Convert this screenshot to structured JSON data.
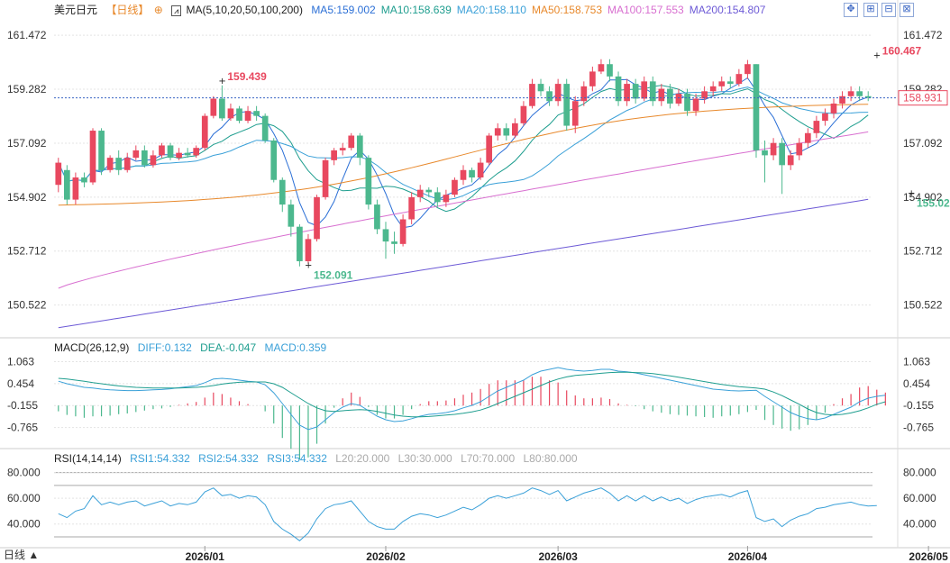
{
  "header": {
    "symbol": "美元日元",
    "period": "【日线】",
    "ma_label": "MA(5,10,20,50,100,200)",
    "ma_values": [
      {
        "label": "MA5:159.002",
        "color": "#2b6fd6"
      },
      {
        "label": "MA10:158.639",
        "color": "#1f9e8f"
      },
      {
        "label": "MA20:158.110",
        "color": "#3aa0d8"
      },
      {
        "label": "MA50:158.753",
        "color": "#e8892c"
      },
      {
        "label": "MA100:157.553",
        "color": "#d86fd0"
      },
      {
        "label": "MA200:154.807",
        "color": "#6d5ad6"
      }
    ]
  },
  "macd_legend": {
    "title": "MACD(26,12,9)",
    "diff": "DIFF:0.132",
    "dea": "DEA:-0.047",
    "macd": "MACD:0.359"
  },
  "rsi_legend": {
    "title": "RSI(14,14,14)",
    "rsi1": "RSI1:54.332",
    "rsi2": "RSI2:54.332",
    "rsi3": "RSI3:54.332",
    "l20": "L20:20.000",
    "l30": "L30:30.000",
    "l70": "L70:70.000",
    "l80": "L80:80.000"
  },
  "footer": {
    "label": "日线 ▲"
  },
  "colors": {
    "up": "#e8485f",
    "down": "#4cb88e",
    "grid": "#e4e4e4",
    "current": "#e8485f"
  },
  "chart_data": [
    {
      "type": "candlestick",
      "y_ticks": [
        "161.472",
        "159.282",
        "157.092",
        "154.902",
        "152.712",
        "150.522"
      ],
      "ylim": [
        149.3,
        162.1
      ],
      "x_ticks": [
        {
          "label": "2026/01",
          "index": 17
        },
        {
          "label": "2026/02",
          "index": 38
        },
        {
          "label": "2026/03",
          "index": 58
        },
        {
          "label": "2026/04",
          "index": 80
        },
        {
          "label": "2026/05",
          "index": 101
        }
      ],
      "current_price": "158.931",
      "annotations": [
        {
          "text": "159.439",
          "index": 19,
          "value": 159.439,
          "pos": "above"
        },
        {
          "text": "152.091",
          "index": 29,
          "value": 152.091,
          "pos": "below"
        },
        {
          "text": "160.467",
          "index": 95,
          "value": 160.467,
          "pos": "above"
        },
        {
          "text": "155.025",
          "index": 99,
          "value": 155.025,
          "pos": "below"
        }
      ],
      "candles": [
        [
          155.4,
          156.3,
          156.5,
          155.1
        ],
        [
          156.0,
          154.8,
          156.2,
          154.6
        ],
        [
          154.8,
          155.7,
          155.9,
          154.6
        ],
        [
          155.7,
          155.5,
          155.9,
          155.3
        ],
        [
          155.5,
          157.6,
          157.7,
          155.4
        ],
        [
          157.6,
          156.0,
          157.7,
          155.8
        ],
        [
          156.0,
          156.5,
          156.6,
          155.9
        ],
        [
          156.5,
          156.0,
          156.8,
          155.8
        ],
        [
          156.0,
          156.5,
          156.7,
          155.9
        ],
        [
          156.5,
          156.8,
          157.0,
          156.4
        ],
        [
          156.8,
          156.2,
          157.0,
          156.1
        ],
        [
          156.2,
          156.6,
          156.8,
          156.1
        ],
        [
          156.6,
          157.0,
          157.1,
          156.5
        ],
        [
          157.0,
          156.5,
          157.1,
          156.4
        ],
        [
          156.5,
          156.7,
          156.9,
          156.4
        ],
        [
          156.7,
          156.6,
          156.9,
          156.5
        ],
        [
          156.6,
          156.9,
          157.0,
          156.5
        ],
        [
          156.9,
          158.2,
          158.3,
          156.8
        ],
        [
          158.2,
          158.9,
          159.0,
          158.1
        ],
        [
          158.9,
          158.1,
          159.44,
          158.0
        ],
        [
          158.1,
          158.5,
          158.7,
          158.0
        ],
        [
          158.5,
          158.0,
          158.6,
          157.9
        ],
        [
          158.0,
          158.4,
          158.6,
          157.9
        ],
        [
          158.4,
          158.2,
          158.6,
          158.0
        ],
        [
          158.2,
          157.2,
          158.3,
          157.1
        ],
        [
          157.2,
          155.6,
          157.3,
          155.5
        ],
        [
          155.6,
          154.6,
          155.7,
          154.3
        ],
        [
          154.6,
          153.7,
          154.8,
          153.3
        ],
        [
          153.7,
          152.3,
          153.8,
          152.09
        ],
        [
          152.3,
          153.2,
          153.4,
          152.2
        ],
        [
          153.2,
          154.9,
          155.0,
          153.1
        ],
        [
          154.9,
          156.4,
          156.5,
          154.8
        ],
        [
          156.4,
          156.8,
          156.9,
          156.2
        ],
        [
          156.8,
          156.9,
          157.1,
          156.6
        ],
        [
          156.9,
          157.4,
          157.5,
          156.8
        ],
        [
          157.4,
          156.5,
          157.5,
          156.2
        ],
        [
          156.5,
          154.6,
          156.6,
          154.4
        ],
        [
          154.6,
          153.6,
          154.8,
          153.4
        ],
        [
          153.6,
          153.1,
          153.9,
          152.4
        ],
        [
          153.1,
          153.0,
          153.5,
          152.6
        ],
        [
          153.0,
          154.0,
          154.2,
          152.9
        ],
        [
          154.0,
          154.9,
          155.1,
          153.8
        ],
        [
          154.9,
          155.2,
          155.4,
          154.7
        ],
        [
          155.2,
          155.1,
          155.3,
          154.9
        ],
        [
          155.1,
          154.7,
          155.3,
          154.5
        ],
        [
          154.7,
          155.0,
          155.2,
          154.5
        ],
        [
          155.0,
          155.6,
          155.7,
          154.9
        ],
        [
          155.6,
          156.0,
          156.2,
          155.4
        ],
        [
          156.0,
          155.7,
          156.1,
          155.5
        ],
        [
          155.7,
          156.3,
          156.5,
          155.6
        ],
        [
          156.3,
          157.4,
          157.5,
          156.2
        ],
        [
          157.4,
          157.7,
          157.9,
          157.2
        ],
        [
          157.7,
          157.4,
          157.9,
          157.2
        ],
        [
          157.4,
          157.9,
          158.1,
          157.3
        ],
        [
          157.9,
          158.6,
          158.8,
          157.8
        ],
        [
          158.6,
          159.5,
          159.7,
          158.5
        ],
        [
          159.5,
          159.2,
          159.7,
          159.0
        ],
        [
          159.2,
          158.8,
          159.4,
          158.6
        ],
        [
          158.8,
          159.5,
          159.7,
          158.6
        ],
        [
          159.5,
          157.8,
          159.7,
          157.6
        ],
        [
          157.8,
          158.8,
          159.0,
          157.5
        ],
        [
          158.8,
          159.4,
          159.6,
          158.6
        ],
        [
          159.4,
          160.0,
          160.2,
          159.2
        ],
        [
          160.0,
          160.3,
          160.5,
          159.9
        ],
        [
          160.3,
          159.8,
          160.5,
          159.6
        ],
        [
          159.8,
          158.8,
          160.0,
          158.6
        ],
        [
          158.8,
          159.5,
          159.7,
          158.6
        ],
        [
          159.5,
          158.9,
          159.7,
          158.7
        ],
        [
          158.9,
          159.6,
          159.8,
          158.8
        ],
        [
          159.6,
          158.8,
          159.8,
          158.6
        ],
        [
          158.8,
          159.3,
          159.5,
          158.6
        ],
        [
          159.3,
          158.7,
          159.5,
          158.5
        ],
        [
          158.7,
          159.1,
          159.3,
          158.6
        ],
        [
          159.1,
          158.4,
          159.3,
          158.2
        ],
        [
          158.4,
          158.9,
          159.1,
          158.2
        ],
        [
          158.9,
          159.2,
          159.4,
          158.7
        ],
        [
          159.2,
          159.4,
          159.6,
          159.0
        ],
        [
          159.4,
          159.6,
          159.8,
          159.2
        ],
        [
          159.6,
          159.5,
          159.8,
          159.3
        ],
        [
          159.5,
          159.9,
          160.1,
          159.4
        ],
        [
          159.9,
          160.3,
          160.47,
          159.7
        ],
        [
          160.3,
          156.8,
          160.3,
          156.5
        ],
        [
          156.8,
          156.6,
          157.2,
          155.5
        ],
        [
          156.6,
          157.1,
          157.3,
          156.4
        ],
        [
          157.1,
          156.2,
          157.3,
          155.03
        ],
        [
          156.2,
          156.6,
          156.8,
          156.0
        ],
        [
          156.6,
          157.1,
          157.3,
          156.4
        ],
        [
          157.1,
          157.5,
          157.7,
          156.9
        ],
        [
          157.5,
          158.0,
          158.2,
          157.3
        ],
        [
          158.0,
          158.3,
          158.5,
          157.8
        ],
        [
          158.3,
          158.7,
          158.9,
          158.1
        ],
        [
          158.7,
          159.0,
          159.2,
          158.5
        ],
        [
          159.0,
          159.2,
          159.4,
          158.8
        ],
        [
          159.2,
          159.0,
          159.4,
          158.8
        ],
        [
          159.0,
          158.93,
          159.2,
          158.8
        ]
      ],
      "moving_averages": [
        {
          "name": "MA5",
          "color": "#2b6fd6",
          "period": 5
        },
        {
          "name": "MA10",
          "color": "#1f9e8f",
          "period": 10
        },
        {
          "name": "MA20",
          "color": "#3aa0d8",
          "period": 20
        },
        {
          "name": "MA50",
          "color": "#e8892c",
          "start": 154.5,
          "end": 158.75,
          "shape": "sigmoid"
        },
        {
          "name": "MA100",
          "color": "#d86fd0",
          "start": 151.2,
          "end": 157.55,
          "shape": "linear_mid"
        },
        {
          "name": "MA200",
          "color": "#6d5ad6",
          "start": 149.6,
          "end": 154.81,
          "shape": "linear"
        }
      ]
    },
    {
      "type": "macd",
      "y_ticks": [
        "1.063",
        "0.454",
        "-0.155",
        "-0.765"
      ],
      "ylim": [
        -1.25,
        1.2
      ],
      "diff": [
        0.52,
        0.45,
        0.4,
        0.35,
        0.33,
        0.3,
        0.28,
        0.27,
        0.26,
        0.26,
        0.27,
        0.28,
        0.29,
        0.31,
        0.34,
        0.37,
        0.4,
        0.48,
        0.58,
        0.6,
        0.58,
        0.55,
        0.52,
        0.5,
        0.42,
        0.2,
        -0.1,
        -0.4,
        -0.7,
        -0.82,
        -0.75,
        -0.55,
        -0.35,
        -0.2,
        -0.1,
        -0.15,
        -0.3,
        -0.45,
        -0.55,
        -0.6,
        -0.58,
        -0.52,
        -0.45,
        -0.4,
        -0.38,
        -0.35,
        -0.3,
        -0.22,
        -0.15,
        -0.05,
        0.1,
        0.25,
        0.35,
        0.45,
        0.55,
        0.7,
        0.8,
        0.85,
        0.9,
        0.85,
        0.82,
        0.8,
        0.82,
        0.85,
        0.85,
        0.8,
        0.78,
        0.75,
        0.7,
        0.65,
        0.6,
        0.55,
        0.5,
        0.45,
        0.4,
        0.35,
        0.3,
        0.28,
        0.26,
        0.25,
        0.26,
        0.27,
        0.1,
        -0.05,
        -0.2,
        -0.35,
        -0.45,
        -0.52,
        -0.55,
        -0.5,
        -0.4,
        -0.3,
        -0.2,
        -0.05,
        0.05,
        0.1,
        0.13
      ],
      "dea": [
        0.6,
        0.58,
        0.55,
        0.52,
        0.48,
        0.45,
        0.42,
        0.39,
        0.37,
        0.35,
        0.34,
        0.33,
        0.33,
        0.33,
        0.33,
        0.34,
        0.35,
        0.37,
        0.4,
        0.44,
        0.47,
        0.49,
        0.5,
        0.5,
        0.5,
        0.45,
        0.35,
        0.2,
        0.05,
        -0.1,
        -0.22,
        -0.3,
        -0.32,
        -0.3,
        -0.28,
        -0.27,
        -0.28,
        -0.32,
        -0.37,
        -0.42,
        -0.45,
        -0.47,
        -0.47,
        -0.46,
        -0.44,
        -0.42,
        -0.4,
        -0.37,
        -0.33,
        -0.28,
        -0.2,
        -0.1,
        0.0,
        0.1,
        0.2,
        0.3,
        0.4,
        0.5,
        0.58,
        0.64,
        0.68,
        0.7,
        0.72,
        0.74,
        0.76,
        0.77,
        0.77,
        0.76,
        0.75,
        0.73,
        0.7,
        0.67,
        0.63,
        0.59,
        0.55,
        0.51,
        0.47,
        0.43,
        0.4,
        0.37,
        0.35,
        0.33,
        0.3,
        0.22,
        0.12,
        0.0,
        -0.12,
        -0.25,
        -0.35,
        -0.4,
        -0.42,
        -0.4,
        -0.36,
        -0.3,
        -0.22,
        -0.12,
        -0.05
      ]
    },
    {
      "type": "rsi",
      "y_ticks": [
        "80.000",
        "60.000",
        "40.000"
      ],
      "ylim": [
        23,
        86
      ],
      "levels": [
        20,
        30,
        70,
        80
      ],
      "rsi": [
        48,
        45,
        50,
        52,
        62,
        55,
        57,
        55,
        57,
        58,
        54,
        56,
        58,
        54,
        56,
        55,
        57,
        65,
        68,
        62,
        63,
        60,
        62,
        61,
        55,
        42,
        36,
        32,
        27,
        33,
        44,
        52,
        55,
        56,
        58,
        50,
        42,
        38,
        36,
        36,
        42,
        46,
        48,
        47,
        45,
        47,
        50,
        53,
        51,
        55,
        60,
        62,
        60,
        62,
        64,
        68,
        66,
        63,
        66,
        58,
        61,
        64,
        66,
        68,
        64,
        58,
        62,
        58,
        62,
        58,
        61,
        58,
        60,
        56,
        59,
        61,
        62,
        63,
        61,
        64,
        66,
        45,
        42,
        44,
        38,
        43,
        46,
        48,
        52,
        53,
        55,
        56,
        57,
        55,
        54,
        54.3
      ]
    }
  ]
}
